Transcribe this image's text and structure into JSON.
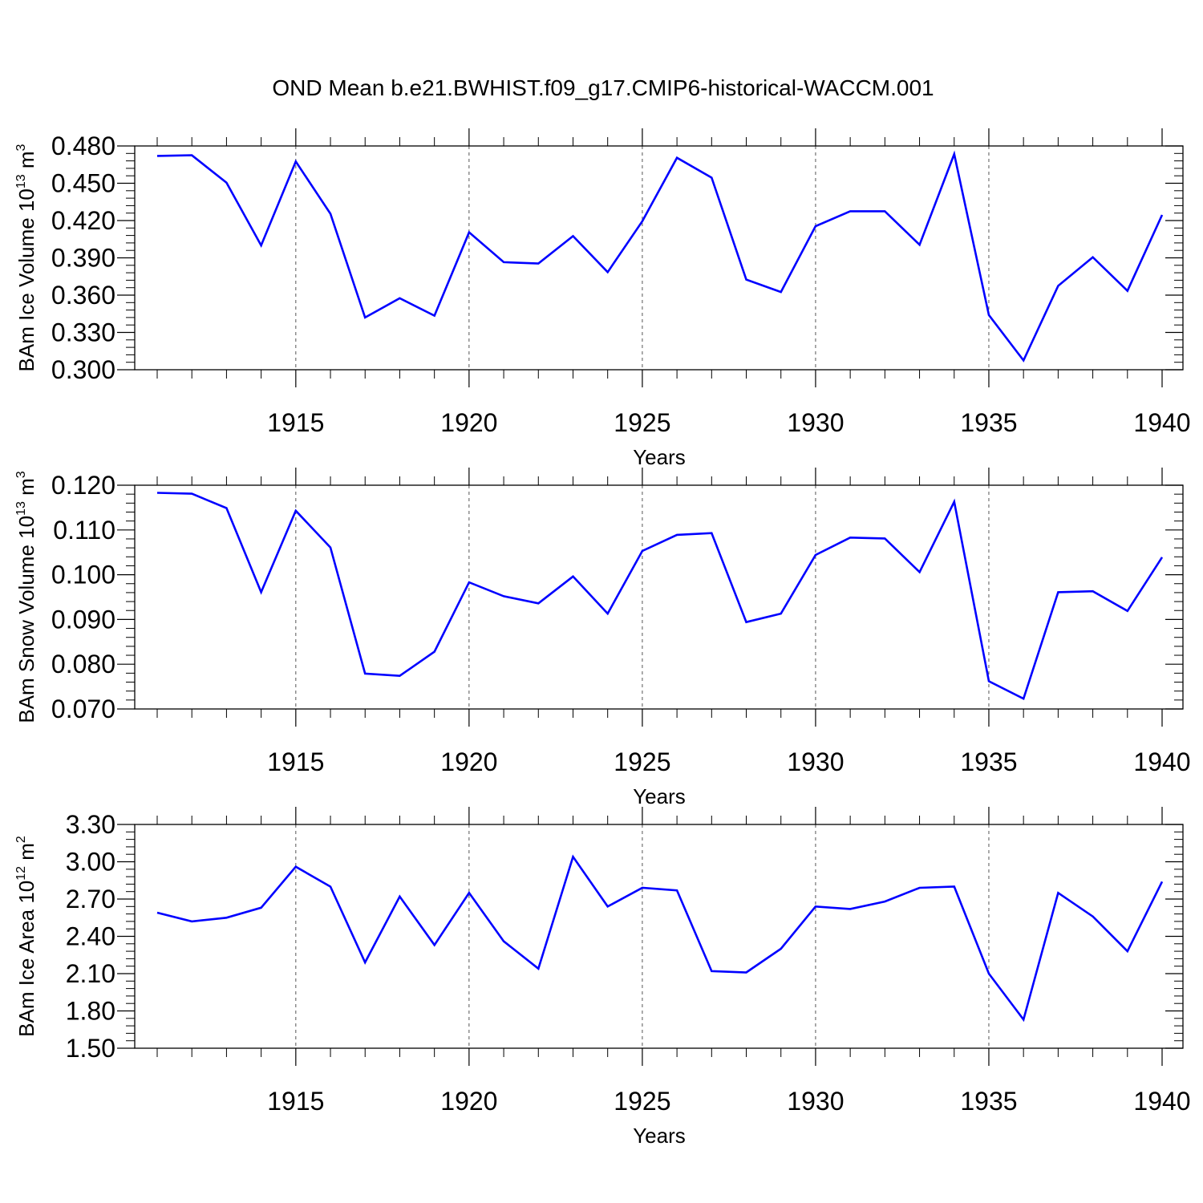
{
  "title": "OND Mean b.e21.BWHIST.f09_g17.CMIP6-historical-WACCM.001",
  "colors": {
    "series": "#0000ff",
    "axes": "#000000",
    "grid": "#555555"
  },
  "chart_data": [
    {
      "type": "line",
      "ylabel": {
        "main": "BAm Ice Volume 10",
        "exp": "13",
        "sep": " m",
        "unit_exp": "3"
      },
      "xlabel": "Years",
      "xlim": [
        1911,
        1940
      ],
      "ylim": [
        0.3,
        0.48
      ],
      "yticks": [
        0.3,
        0.33,
        0.36,
        0.39,
        0.42,
        0.45,
        0.48
      ],
      "ytick_labels": [
        "0.300",
        "0.330",
        "0.360",
        "0.390",
        "0.420",
        "0.450",
        "0.480"
      ],
      "xticks": [
        1915,
        1920,
        1925,
        1930,
        1935,
        1940
      ],
      "xtick_labels": [
        "1915",
        "1920",
        "1925",
        "1930",
        "1935",
        "1940"
      ],
      "grid_x": [
        1915,
        1920,
        1925,
        1930,
        1935
      ],
      "series": [
        {
          "name": "BAm Ice Volume",
          "x": [
            1911,
            1912,
            1913,
            1914,
            1915,
            1916,
            1917,
            1918,
            1919,
            1920,
            1921,
            1922,
            1923,
            1924,
            1925,
            1926,
            1927,
            1928,
            1929,
            1930,
            1931,
            1932,
            1933,
            1934,
            1935,
            1936,
            1937,
            1938,
            1939,
            1940
          ],
          "values": [
            0.472,
            0.4725,
            0.4505,
            0.4,
            0.4675,
            0.4255,
            0.342,
            0.3575,
            0.3435,
            0.4105,
            0.3865,
            0.3855,
            0.4075,
            0.3785,
            0.4195,
            0.4705,
            0.4545,
            0.3725,
            0.3625,
            0.4155,
            0.4275,
            0.4275,
            0.4005,
            0.4735,
            0.344,
            0.3075,
            0.3675,
            0.3905,
            0.3635,
            0.4245
          ]
        }
      ]
    },
    {
      "type": "line",
      "ylabel": {
        "main": "BAm Snow Volume 10",
        "exp": "13",
        "sep": " m",
        "unit_exp": "3"
      },
      "xlabel": "Years",
      "xlim": [
        1911,
        1940
      ],
      "ylim": [
        0.07,
        0.12
      ],
      "yticks": [
        0.07,
        0.08,
        0.09,
        0.1,
        0.11,
        0.12
      ],
      "ytick_labels": [
        "0.070",
        "0.080",
        "0.090",
        "0.100",
        "0.110",
        "0.120"
      ],
      "xticks": [
        1915,
        1920,
        1925,
        1930,
        1935,
        1940
      ],
      "xtick_labels": [
        "1915",
        "1920",
        "1925",
        "1930",
        "1935",
        "1940"
      ],
      "grid_x": [
        1915,
        1920,
        1925,
        1930,
        1935
      ],
      "series": [
        {
          "name": "BAm Snow Volume",
          "x": [
            1911,
            1912,
            1913,
            1914,
            1915,
            1916,
            1917,
            1918,
            1919,
            1920,
            1921,
            1922,
            1923,
            1924,
            1925,
            1926,
            1927,
            1928,
            1929,
            1930,
            1931,
            1932,
            1933,
            1934,
            1935,
            1936,
            1937,
            1938,
            1939,
            1940
          ],
          "values": [
            0.1183,
            0.1181,
            0.1149,
            0.0961,
            0.1143,
            0.1061,
            0.0779,
            0.0774,
            0.0828,
            0.0983,
            0.0952,
            0.0936,
            0.0996,
            0.0913,
            0.1053,
            0.1089,
            0.1093,
            0.0894,
            0.0913,
            0.1044,
            0.1083,
            0.1081,
            0.1006,
            0.1163,
            0.0762,
            0.0723,
            0.0961,
            0.0963,
            0.0919,
            0.1039
          ]
        }
      ]
    },
    {
      "type": "line",
      "ylabel": {
        "main": "BAm Ice Area 10",
        "exp": "12",
        "sep": " m",
        "unit_exp": "2"
      },
      "xlabel": "Years",
      "xlim": [
        1911,
        1940
      ],
      "ylim": [
        1.5,
        3.3
      ],
      "yticks": [
        1.5,
        1.8,
        2.1,
        2.4,
        2.7,
        3.0,
        3.3
      ],
      "ytick_labels": [
        "1.50",
        "1.80",
        "2.10",
        "2.40",
        "2.70",
        "3.00",
        "3.30"
      ],
      "xticks": [
        1915,
        1920,
        1925,
        1930,
        1935,
        1940
      ],
      "xtick_labels": [
        "1915",
        "1920",
        "1925",
        "1930",
        "1935",
        "1940"
      ],
      "grid_x": [
        1915,
        1920,
        1925,
        1930,
        1935
      ],
      "series": [
        {
          "name": "BAm Ice Area",
          "x": [
            1911,
            1912,
            1913,
            1914,
            1915,
            1916,
            1917,
            1918,
            1919,
            1920,
            1921,
            1922,
            1923,
            1924,
            1925,
            1926,
            1927,
            1928,
            1929,
            1930,
            1931,
            1932,
            1933,
            1934,
            1935,
            1936,
            1937,
            1938,
            1939,
            1940
          ],
          "values": [
            2.59,
            2.52,
            2.55,
            2.63,
            2.96,
            2.8,
            2.19,
            2.72,
            2.33,
            2.75,
            2.36,
            2.14,
            3.04,
            2.64,
            2.79,
            2.77,
            2.12,
            2.11,
            2.3,
            2.64,
            2.62,
            2.68,
            2.79,
            2.8,
            2.1,
            1.73,
            2.75,
            2.56,
            2.28,
            2.84
          ]
        }
      ]
    }
  ]
}
